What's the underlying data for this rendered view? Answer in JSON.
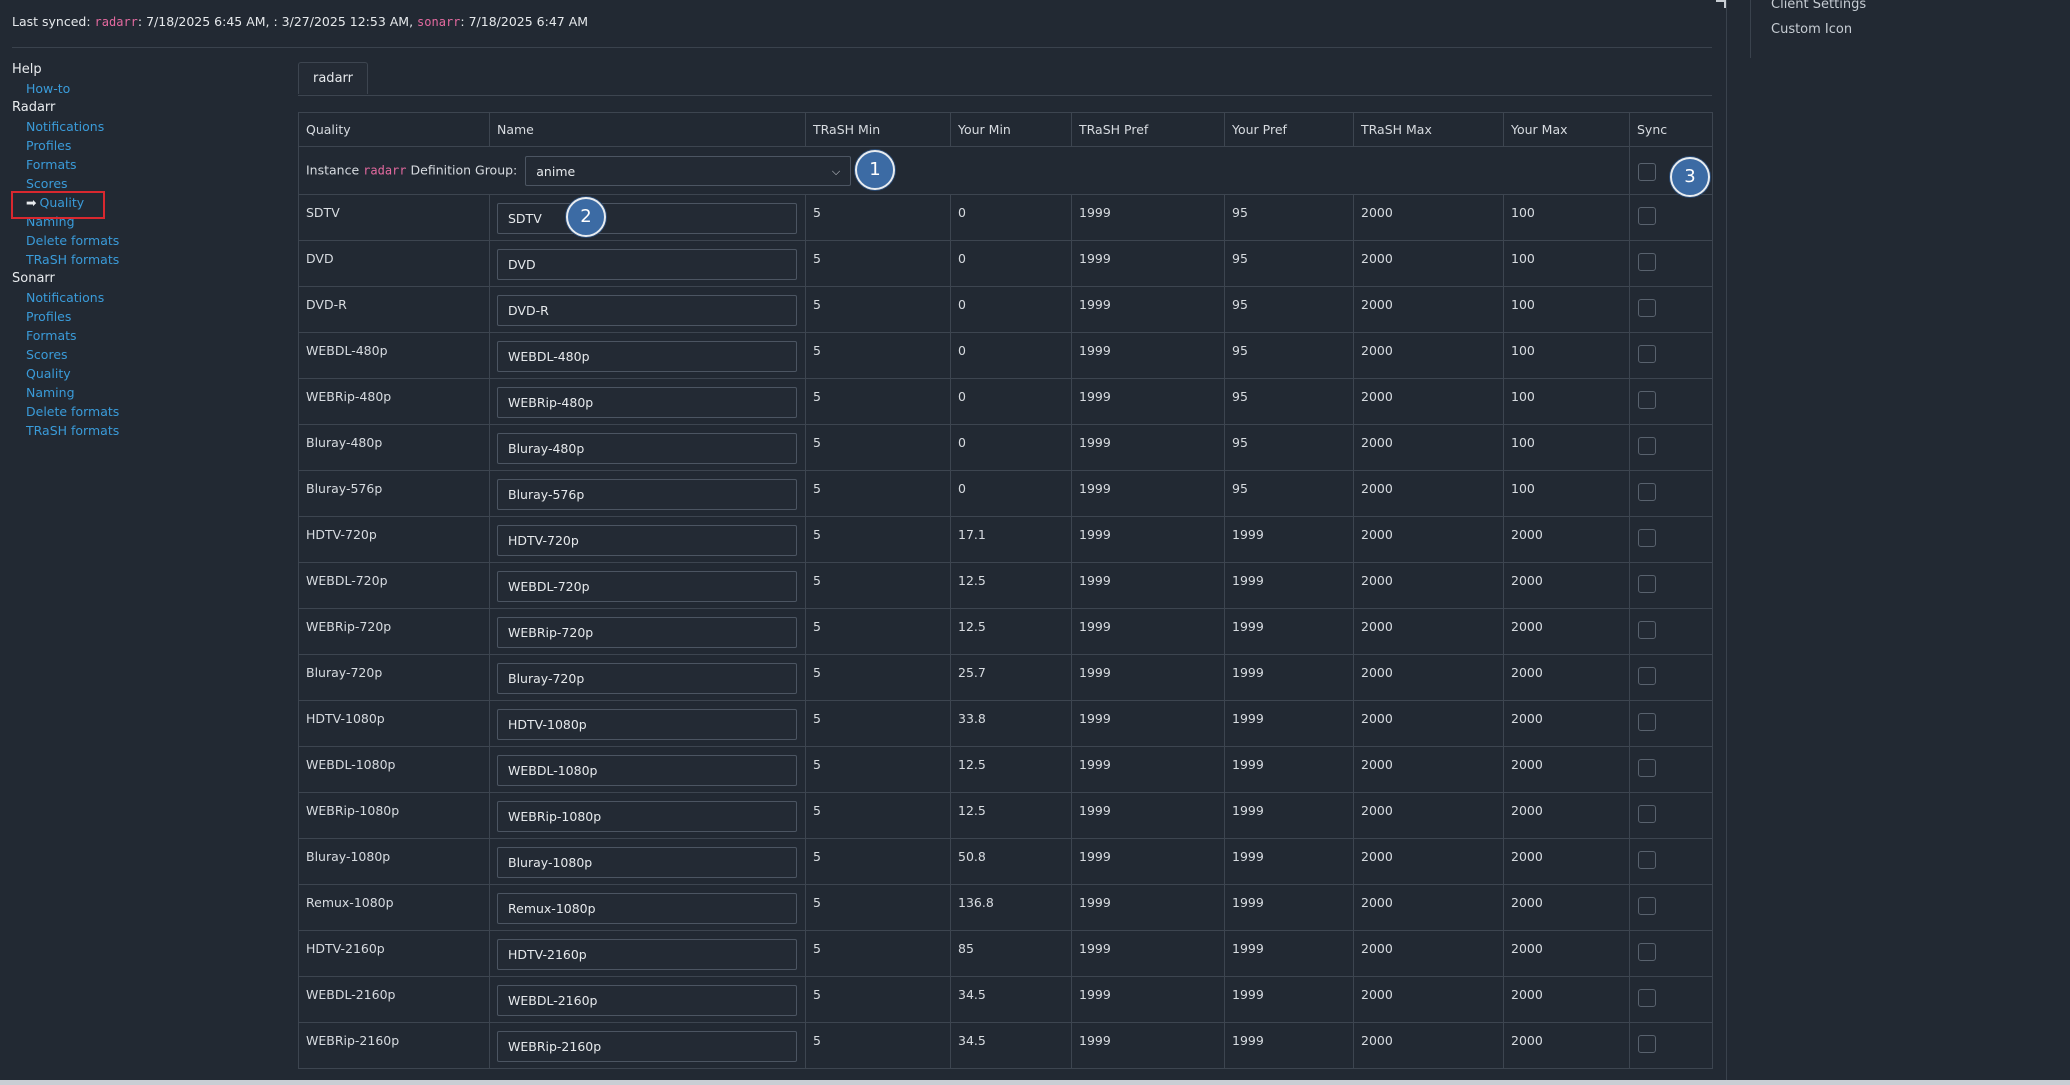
{
  "sync": {
    "label": "Last synced:",
    "radarr_name": "radarr",
    "radarr_time": ": 7/18/2025 6:45 AM,",
    "other_time": ": 3/27/2025 12:53 AM,",
    "sonarr_name": "sonarr",
    "sonarr_time": ": 7/18/2025 6:47 AM"
  },
  "right_menu": [
    "Client Settings",
    "Custom Icon"
  ],
  "nav": {
    "help": {
      "title": "Help",
      "items": [
        "How-to"
      ]
    },
    "radarr": {
      "title": "Radarr",
      "items": [
        "Notifications",
        "Profiles",
        "Formats",
        "Scores",
        "Quality",
        "Naming",
        "Delete formats",
        "TRaSH formats"
      ],
      "active": "Quality"
    },
    "sonarr": {
      "title": "Sonarr",
      "items": [
        "Notifications",
        "Profiles",
        "Formats",
        "Scores",
        "Quality",
        "Naming",
        "Delete formats",
        "TRaSH formats"
      ]
    }
  },
  "tab": "radarr",
  "table": {
    "headers": [
      "Quality",
      "Name",
      "TRaSH Min",
      "Your Min",
      "TRaSH Pref",
      "Your Pref",
      "TRaSH Max",
      "Your Max",
      "Sync"
    ],
    "group": {
      "prefix": "Instance",
      "instance": "radarr",
      "suffix": "Definition Group:",
      "selected": "anime"
    },
    "rows": [
      [
        "SDTV",
        "SDTV",
        "5",
        "0",
        "1999",
        "95",
        "2000",
        "100"
      ],
      [
        "DVD",
        "DVD",
        "5",
        "0",
        "1999",
        "95",
        "2000",
        "100"
      ],
      [
        "DVD-R",
        "DVD-R",
        "5",
        "0",
        "1999",
        "95",
        "2000",
        "100"
      ],
      [
        "WEBDL-480p",
        "WEBDL-480p",
        "5",
        "0",
        "1999",
        "95",
        "2000",
        "100"
      ],
      [
        "WEBRip-480p",
        "WEBRip-480p",
        "5",
        "0",
        "1999",
        "95",
        "2000",
        "100"
      ],
      [
        "Bluray-480p",
        "Bluray-480p",
        "5",
        "0",
        "1999",
        "95",
        "2000",
        "100"
      ],
      [
        "Bluray-576p",
        "Bluray-576p",
        "5",
        "0",
        "1999",
        "95",
        "2000",
        "100"
      ],
      [
        "HDTV-720p",
        "HDTV-720p",
        "5",
        "17.1",
        "1999",
        "1999",
        "2000",
        "2000"
      ],
      [
        "WEBDL-720p",
        "WEBDL-720p",
        "5",
        "12.5",
        "1999",
        "1999",
        "2000",
        "2000"
      ],
      [
        "WEBRip-720p",
        "WEBRip-720p",
        "5",
        "12.5",
        "1999",
        "1999",
        "2000",
        "2000"
      ],
      [
        "Bluray-720p",
        "Bluray-720p",
        "5",
        "25.7",
        "1999",
        "1999",
        "2000",
        "2000"
      ],
      [
        "HDTV-1080p",
        "HDTV-1080p",
        "5",
        "33.8",
        "1999",
        "1999",
        "2000",
        "2000"
      ],
      [
        "WEBDL-1080p",
        "WEBDL-1080p",
        "5",
        "12.5",
        "1999",
        "1999",
        "2000",
        "2000"
      ],
      [
        "WEBRip-1080p",
        "WEBRip-1080p",
        "5",
        "12.5",
        "1999",
        "1999",
        "2000",
        "2000"
      ],
      [
        "Bluray-1080p",
        "Bluray-1080p",
        "5",
        "50.8",
        "1999",
        "1999",
        "2000",
        "2000"
      ],
      [
        "Remux-1080p",
        "Remux-1080p",
        "5",
        "136.8",
        "1999",
        "1999",
        "2000",
        "2000"
      ],
      [
        "HDTV-2160p",
        "HDTV-2160p",
        "5",
        "85",
        "1999",
        "1999",
        "2000",
        "2000"
      ],
      [
        "WEBDL-2160p",
        "WEBDL-2160p",
        "5",
        "34.5",
        "1999",
        "1999",
        "2000",
        "2000"
      ],
      [
        "WEBRip-2160p",
        "WEBRip-2160p",
        "5",
        "34.5",
        "1999",
        "1999",
        "2000",
        "2000"
      ]
    ]
  },
  "badges": [
    "1",
    "2",
    "3"
  ]
}
